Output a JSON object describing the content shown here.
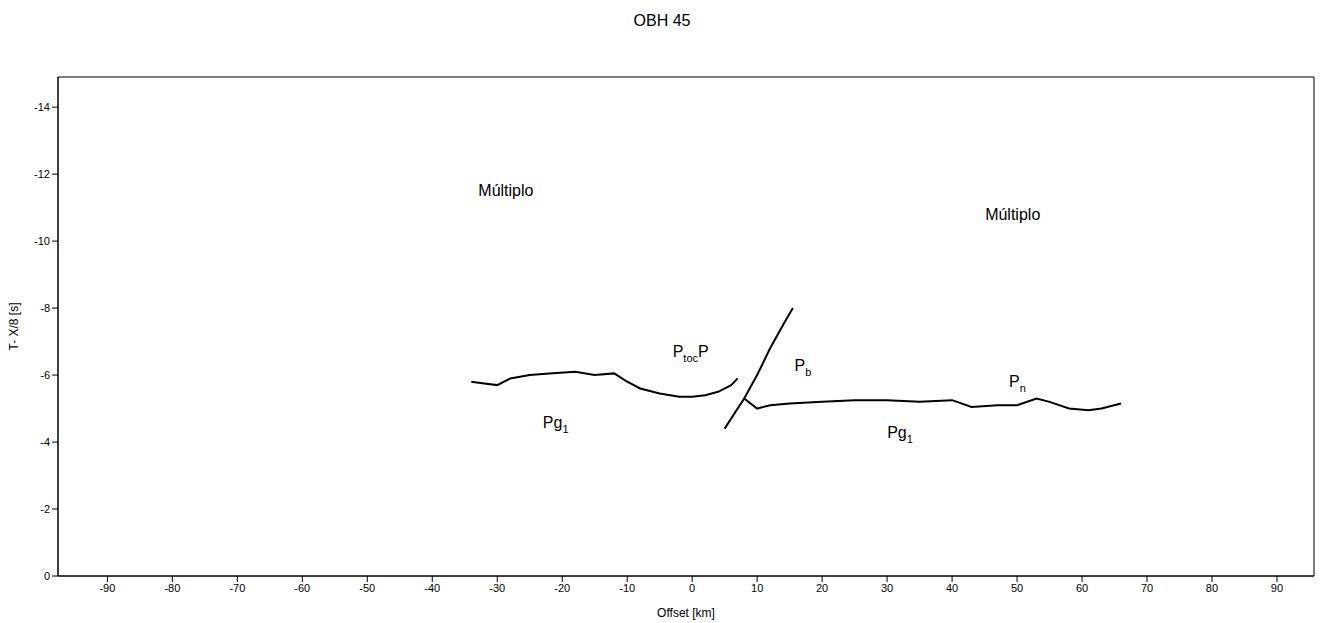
{
  "chart_data": {
    "type": "line",
    "title": "OBH 45",
    "x_label": "Offset [km]",
    "y_label": "T- X/8 [s]",
    "xlim": [
      -97.6,
      95.7
    ],
    "ylim": [
      -14.9,
      0
    ],
    "xticks": [
      -90,
      -80,
      -70,
      -60,
      -50,
      -40,
      -30,
      -20,
      -10,
      0,
      10,
      20,
      30,
      40,
      50,
      60,
      70,
      80,
      90
    ],
    "yticks": [
      0,
      -2,
      -4,
      -6,
      -8,
      -10,
      -12,
      -14
    ],
    "series": [
      {
        "color": "#000000",
        "x": [
          -34,
          -32,
          -30,
          -28,
          -25,
          -22,
          -18,
          -15,
          -12,
          -10,
          -8,
          -5,
          -2,
          0,
          2,
          4,
          6,
          7
        ],
        "values": [
          -5.8,
          -5.75,
          -5.7,
          -5.9,
          -6.0,
          -6.05,
          -6.1,
          -6.0,
          -6.05,
          -5.8,
          -5.6,
          -5.45,
          -5.35,
          -5.35,
          -5.4,
          -5.5,
          -5.7,
          -5.9
        ]
      },
      {
        "color": "#000000",
        "x": [
          5,
          8,
          10,
          12,
          14,
          15.5
        ],
        "values": [
          -4.4,
          -5.3,
          -6.0,
          -6.8,
          -7.5,
          -8.0
        ]
      },
      {
        "color": "#000000",
        "x": [
          8,
          10,
          12,
          15,
          20,
          25,
          30,
          35,
          40,
          43,
          47,
          50,
          53,
          55,
          58,
          61,
          63,
          66
        ],
        "values": [
          -5.3,
          -5.0,
          -5.1,
          -5.15,
          -5.2,
          -5.25,
          -5.25,
          -5.2,
          -5.25,
          -5.05,
          -5.1,
          -5.1,
          -5.3,
          -5.2,
          -5.0,
          -4.95,
          -5.0,
          -5.15
        ]
      }
    ],
    "annotations": [
      {
        "x": -27,
        "y": -11.5,
        "parts": [
          {
            "text": "Múltiplo"
          }
        ]
      },
      {
        "x": 51,
        "y": -10.8,
        "parts": [
          {
            "text": "Múltiplo"
          }
        ]
      },
      {
        "x": 0,
        "y": -6.7,
        "parts": [
          {
            "text": "P"
          },
          {
            "text": "toc",
            "sub": true
          },
          {
            "text": "P"
          }
        ]
      },
      {
        "x": 17,
        "y": -6.3,
        "parts": [
          {
            "text": "P"
          },
          {
            "text": "b",
            "sub": true
          }
        ]
      },
      {
        "x": 50,
        "y": -5.8,
        "parts": [
          {
            "text": "P"
          },
          {
            "text": "n",
            "sub": true
          }
        ]
      },
      {
        "x": -21,
        "y": -4.6,
        "parts": [
          {
            "text": "Pg"
          },
          {
            "text": "1",
            "sub": true
          }
        ]
      },
      {
        "x": 32,
        "y": -4.3,
        "parts": [
          {
            "text": "Pg"
          },
          {
            "text": "1",
            "sub": true
          }
        ]
      }
    ]
  }
}
